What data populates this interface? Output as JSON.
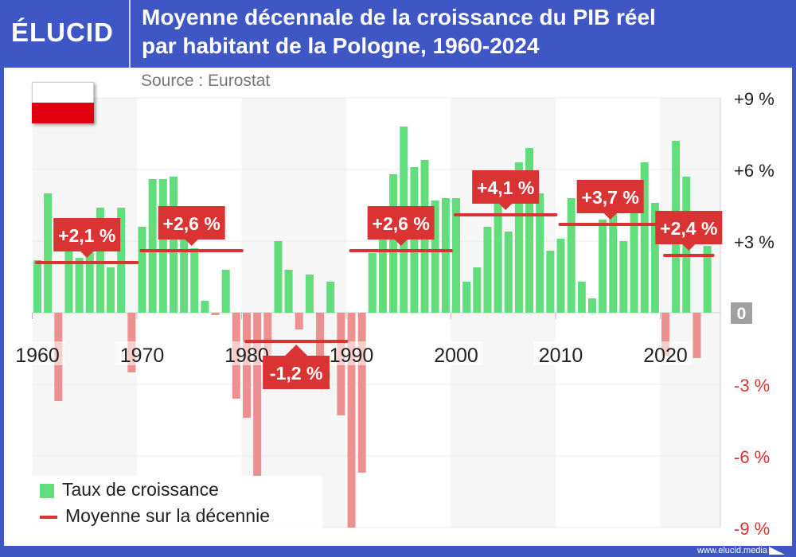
{
  "header": {
    "logo": "ÉLUCID",
    "title_line1": "Moyenne décennale de la croissance du PIB réel",
    "title_line2": "par habitant de la Pologne, 1960-2024",
    "source": "Source : Eurostat"
  },
  "footer": {
    "url": "www.elucid.media"
  },
  "legend": {
    "bars": "Taux de croissance",
    "line": "Moyenne sur la décennie"
  },
  "colors": {
    "header": "#3f57c4",
    "positive": "#62dd7b",
    "negative": "#ec9090",
    "average": "#d93333",
    "negative_tick": "#d93333"
  },
  "icons": {
    "flag": "poland-flag-icon"
  },
  "chart_data": {
    "type": "bar",
    "title": "Moyenne décennale de la croissance du PIB réel par habitant de la Pologne, 1960-2024",
    "x_start": 1960,
    "years": [
      1960,
      1961,
      1962,
      1963,
      1964,
      1965,
      1966,
      1967,
      1968,
      1969,
      1970,
      1971,
      1972,
      1973,
      1974,
      1975,
      1976,
      1977,
      1978,
      1979,
      1980,
      1981,
      1982,
      1983,
      1984,
      1985,
      1986,
      1987,
      1988,
      1989,
      1990,
      1991,
      1992,
      1993,
      1994,
      1995,
      1996,
      1997,
      1998,
      1999,
      2000,
      2001,
      2002,
      2003,
      2004,
      2005,
      2006,
      2007,
      2008,
      2009,
      2010,
      2011,
      2012,
      2013,
      2014,
      2015,
      2016,
      2017,
      2018,
      2019,
      2020,
      2021,
      2022,
      2023,
      2024
    ],
    "values": [
      2.2,
      5.0,
      -3.7,
      3.0,
      2.3,
      3.0,
      4.4,
      1.9,
      4.4,
      -2.5,
      3.6,
      5.6,
      5.6,
      5.7,
      4.2,
      2.7,
      0.5,
      -0.1,
      1.8,
      -3.6,
      -4.4,
      -6.9,
      -2.5,
      3.0,
      1.8,
      -0.7,
      1.6,
      -1.8,
      1.3,
      -4.3,
      -9.0,
      -6.7,
      2.5,
      3.6,
      5.8,
      7.8,
      6.1,
      6.4,
      4.7,
      4.8,
      4.8,
      1.3,
      1.9,
      3.6,
      5.2,
      3.4,
      6.3,
      6.9,
      5.0,
      2.6,
      3.1,
      4.8,
      1.3,
      0.6,
      3.9,
      4.3,
      3.0,
      5.0,
      6.3,
      4.6,
      -1.8,
      7.2,
      5.7,
      -1.9,
      2.8
    ],
    "decade_averages": [
      {
        "from": 1960,
        "to": 1969,
        "value": 2.1,
        "label": "+2,1 %"
      },
      {
        "from": 1970,
        "to": 1979,
        "value": 2.6,
        "label": "+2,6 %"
      },
      {
        "from": 1980,
        "to": 1989,
        "value": -1.2,
        "label": "-1,2 %"
      },
      {
        "from": 1990,
        "to": 1999,
        "value": 2.6,
        "label": "+2,6 %"
      },
      {
        "from": 2000,
        "to": 2009,
        "value": 4.1,
        "label": "+4,1 %"
      },
      {
        "from": 2010,
        "to": 2019,
        "value": 3.7,
        "label": "+3,7 %"
      },
      {
        "from": 2020,
        "to": 2024,
        "value": 2.4,
        "label": "+2,4 %"
      }
    ],
    "x_ticks": [
      "1960",
      "1970",
      "1980",
      "1990",
      "2000",
      "2010",
      "2020"
    ],
    "y_ticks": [
      {
        "v": 9,
        "label": "+9 %"
      },
      {
        "v": 6,
        "label": "+6 %"
      },
      {
        "v": 3,
        "label": "+3 %"
      },
      {
        "v": 0,
        "label": "0"
      },
      {
        "v": -3,
        "label": "-3 %"
      },
      {
        "v": -6,
        "label": "-6 %"
      },
      {
        "v": -9,
        "label": "-9 %"
      }
    ],
    "ylim": [
      -9,
      9
    ],
    "y_axis_side": "right",
    "grid": true,
    "legend_position": "bottom-left"
  }
}
